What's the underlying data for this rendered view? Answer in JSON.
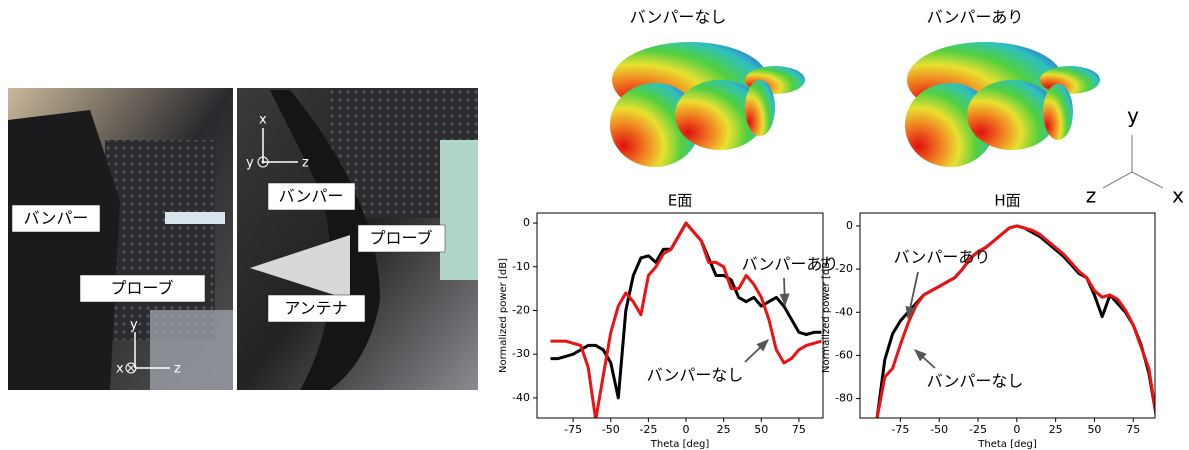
{
  "figure": {
    "photo_left": {
      "labels": [
        "バンパー",
        "プローブ"
      ],
      "axes": [
        "y",
        "x",
        "z"
      ]
    },
    "photo_right": {
      "labels": [
        "バンパー",
        "プローブ",
        "アンテナ"
      ],
      "axes": [
        "x",
        "y",
        "z"
      ]
    },
    "patterns": {
      "titles": [
        "バンパーなし",
        "バンパーあり"
      ],
      "axes": [
        "y",
        "z",
        "x"
      ]
    }
  },
  "chart_data": [
    {
      "type": "line",
      "title": "E面",
      "x_label": "Theta [deg]",
      "y_label": "Normalized power [dB]",
      "x": [
        -90,
        -85,
        -80,
        -75,
        -70,
        -65,
        -60,
        -55,
        -50,
        -45,
        -40,
        -35,
        -30,
        -25,
        -20,
        -15,
        -10,
        -5,
        0,
        5,
        10,
        15,
        20,
        25,
        30,
        35,
        40,
        45,
        50,
        55,
        60,
        65,
        70,
        75,
        80,
        85,
        90
      ],
      "series": [
        {
          "name": "バンパーあり",
          "color": "#000000",
          "values": [
            -31,
            -31,
            -30.5,
            -30,
            -29,
            -28,
            -28,
            -29,
            -32,
            -40,
            -20,
            -12,
            -8,
            -7.5,
            -9,
            -6,
            -6,
            -3,
            0,
            -2,
            -4,
            -8,
            -12,
            -12,
            -13,
            -17,
            -18,
            -17,
            -19,
            -18,
            -17,
            -19,
            -22,
            -25,
            -25.5,
            -25,
            -25
          ]
        },
        {
          "name": "バンパーなし",
          "color": "#ee1111",
          "values": [
            -27,
            -27,
            -27,
            -27.5,
            -28,
            -33,
            -45,
            -35,
            -25,
            -19,
            -16,
            -18,
            -21,
            -12,
            -10,
            -7,
            -6,
            -3,
            0,
            -2,
            -4,
            -9,
            -9,
            -10,
            -15,
            -15,
            -12,
            -14,
            -17,
            -22,
            -29,
            -32,
            -31,
            -29,
            -28,
            -27.5,
            -27
          ]
        }
      ],
      "xlim": [
        -99,
        91
      ],
      "ylim": [
        -44.6,
        2.3
      ],
      "xticks": [
        -75,
        -50,
        -25,
        0,
        25,
        50,
        75
      ],
      "yticks": [
        -40,
        -30,
        -20,
        -10,
        0
      ]
    },
    {
      "type": "line",
      "title": "H面",
      "x_label": "Theta [deg]",
      "y_label": "Normalized power [dB]",
      "x": [
        -90,
        -85,
        -80,
        -75,
        -70,
        -65,
        -60,
        -55,
        -50,
        -45,
        -40,
        -35,
        -30,
        -25,
        -20,
        -15,
        -10,
        -5,
        0,
        5,
        10,
        15,
        20,
        25,
        30,
        35,
        40,
        45,
        50,
        55,
        60,
        65,
        70,
        75,
        80,
        85,
        90
      ],
      "series": [
        {
          "name": "バンパーあり",
          "color": "#000000",
          "values": [
            -89,
            -62,
            -50,
            -44,
            -40,
            -36,
            -32,
            -30,
            -28,
            -26,
            -24,
            -20,
            -15,
            -12,
            -10,
            -7,
            -4,
            -1,
            0,
            -1,
            -3,
            -5,
            -8,
            -11,
            -14,
            -18,
            -22,
            -24,
            -32,
            -42,
            -32,
            -36,
            -40,
            -46,
            -55,
            -68,
            -89
          ]
        },
        {
          "name": "バンパーなし",
          "color": "#ee1111",
          "values": [
            -89,
            -70,
            -66,
            -55,
            -45,
            -37,
            -32,
            -30,
            -28,
            -26,
            -24,
            -20,
            -15,
            -12,
            -10,
            -7,
            -4,
            -1,
            0,
            -1,
            -2,
            -4,
            -7,
            -10,
            -13,
            -17,
            -21,
            -24,
            -30,
            -33,
            -32,
            -34,
            -39,
            -46,
            -56,
            -66,
            -89
          ]
        }
      ],
      "xlim": [
        -101,
        89
      ],
      "ylim": [
        -89,
        6
      ],
      "xticks": [
        -75,
        -50,
        -25,
        0,
        25,
        50,
        75
      ],
      "yticks": [
        -80,
        -60,
        -40,
        -20,
        0
      ]
    }
  ]
}
